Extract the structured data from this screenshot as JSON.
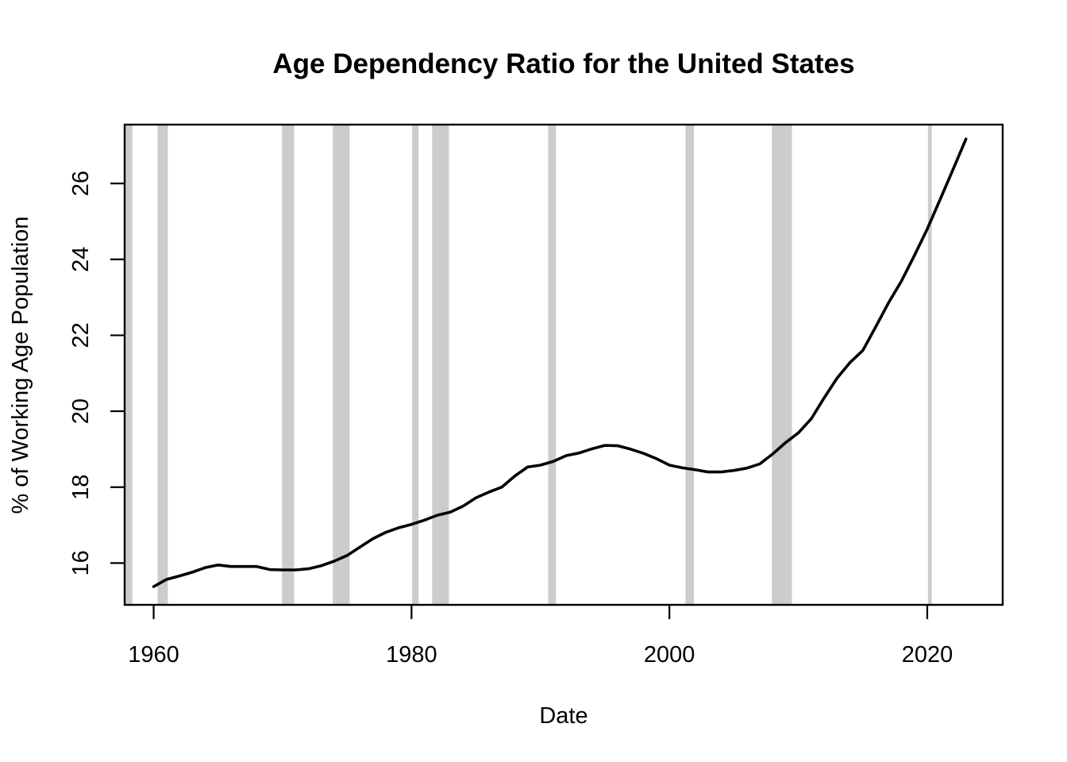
{
  "chart_data": {
    "type": "line",
    "title": "Age Dependency Ratio for the United States",
    "xlabel": "Date",
    "ylabel": "% of Working Age Population",
    "xlim": [
      1957.75,
      2025.85
    ],
    "ylim": [
      14.9,
      27.55
    ],
    "x_ticks": [
      1960,
      1980,
      2000,
      2020
    ],
    "y_ticks": [
      16,
      18,
      20,
      22,
      24,
      26
    ],
    "grid": false,
    "legend": "none",
    "series_color": "#000000",
    "shading_color": "#cccccc",
    "recessions": [
      {
        "start": 1957.75,
        "end": 1958.35
      },
      {
        "start": 1960.3,
        "end": 1961.1
      },
      {
        "start": 1969.95,
        "end": 1970.9
      },
      {
        "start": 1973.9,
        "end": 1975.2
      },
      {
        "start": 1980.05,
        "end": 1980.55
      },
      {
        "start": 1981.6,
        "end": 1982.9
      },
      {
        "start": 1990.6,
        "end": 1991.2
      },
      {
        "start": 2001.25,
        "end": 2001.9
      },
      {
        "start": 2007.95,
        "end": 2009.5
      },
      {
        "start": 2020.05,
        "end": 2020.35
      }
    ],
    "series": [
      {
        "x": [
          1960,
          1961,
          1962,
          1963,
          1964,
          1965,
          1966,
          1967,
          1968,
          1969,
          1970,
          1971,
          1972,
          1973,
          1974,
          1975,
          1976,
          1977,
          1978,
          1979,
          1980,
          1981,
          1982,
          1983,
          1984,
          1985,
          1986,
          1987,
          1988,
          1989,
          1990,
          1991,
          1992,
          1993,
          1994,
          1995,
          1996,
          1997,
          1998,
          1999,
          2000,
          2001,
          2002,
          2003,
          2004,
          2005,
          2006,
          2007,
          2008,
          2009,
          2010,
          2011,
          2012,
          2013,
          2014,
          2015,
          2016,
          2017,
          2018,
          2019,
          2020,
          2021,
          2022,
          2023
        ],
        "values": [
          15.38,
          15.57,
          15.66,
          15.76,
          15.88,
          15.95,
          15.91,
          15.91,
          15.91,
          15.83,
          15.82,
          15.82,
          15.85,
          15.93,
          16.05,
          16.2,
          16.42,
          16.64,
          16.81,
          16.93,
          17.02,
          17.13,
          17.26,
          17.34,
          17.5,
          17.72,
          17.87,
          18.0,
          18.29,
          18.53,
          18.58,
          18.68,
          18.83,
          18.9,
          19.01,
          19.1,
          19.09,
          19.0,
          18.89,
          18.75,
          18.58,
          18.51,
          18.46,
          18.4,
          18.4,
          18.44,
          18.5,
          18.61,
          18.87,
          19.17,
          19.43,
          19.8,
          20.35,
          20.87,
          21.28,
          21.6,
          22.22,
          22.86,
          23.43,
          24.1,
          24.8,
          25.58,
          26.37,
          27.17
        ]
      }
    ]
  }
}
